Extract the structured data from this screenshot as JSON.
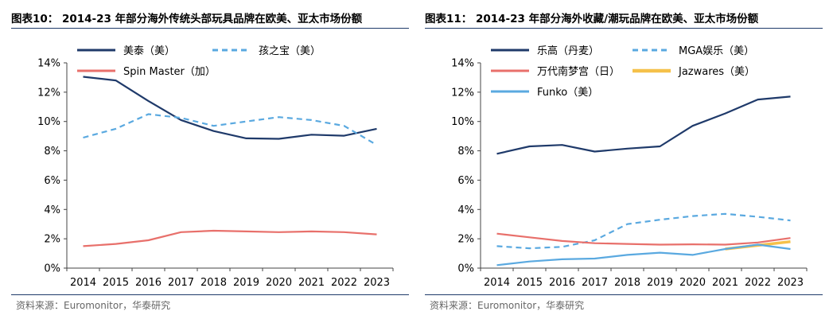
{
  "charts": [
    {
      "title": "图表10：  2014-23 年部分海外传统头部玩具品牌在欧美、亚太市场份额",
      "source": "资料来源：Euromonitor，华泰研究",
      "chart_data": {
        "type": "line",
        "x": [
          "2014",
          "2015",
          "2016",
          "2017",
          "2018",
          "2019",
          "2020",
          "2021",
          "2022",
          "2023"
        ],
        "ylim": [
          0,
          14
        ],
        "yticks": [
          "0%",
          "2%",
          "4%",
          "6%",
          "8%",
          "10%",
          "12%",
          "14%"
        ],
        "xlabel": "",
        "ylabel": "",
        "grid": false,
        "legend_placement": "top",
        "series": [
          {
            "name": "美泰（美）",
            "color": "#1f3a6a",
            "dash": "solid",
            "values": [
              13.05,
              12.8,
              11.4,
              10.1,
              9.35,
              8.85,
              8.82,
              9.1,
              9.03,
              9.5
            ]
          },
          {
            "name": "孩之宝（美）",
            "color": "#5aa9e0",
            "dash": "dashed",
            "values": [
              8.9,
              9.5,
              10.5,
              10.25,
              9.7,
              10.0,
              10.3,
              10.1,
              9.7,
              8.4
            ]
          },
          {
            "name": "Spin Master（加）",
            "color": "#e8706b",
            "dash": "solid",
            "values": [
              1.5,
              1.65,
              1.9,
              2.45,
              2.55,
              2.5,
              2.45,
              2.5,
              2.45,
              2.3
            ]
          }
        ]
      }
    },
    {
      "title": "图表11：  2014-23 年部分海外收藏/潮玩品牌在欧美、亚太市场份额",
      "source": "资料来源：Euromonitor，华泰研究",
      "chart_data": {
        "type": "line",
        "x": [
          "2014",
          "2015",
          "2016",
          "2017",
          "2018",
          "2019",
          "2020",
          "2021",
          "2022",
          "2023"
        ],
        "ylim": [
          0,
          14
        ],
        "yticks": [
          "0%",
          "2%",
          "4%",
          "6%",
          "8%",
          "10%",
          "12%",
          "14%"
        ],
        "xlabel": "",
        "ylabel": "",
        "grid": false,
        "legend_placement": "top",
        "series": [
          {
            "name": "乐高（丹麦）",
            "color": "#1f3a6a",
            "dash": "solid",
            "values": [
              7.8,
              8.3,
              8.4,
              7.95,
              8.15,
              8.3,
              9.7,
              10.55,
              11.5,
              11.7
            ]
          },
          {
            "name": "MGA娱乐（美）",
            "color": "#5aa9e0",
            "dash": "dashed",
            "values": [
              1.5,
              1.35,
              1.45,
              1.9,
              3.0,
              3.3,
              3.55,
              3.7,
              3.5,
              3.25
            ]
          },
          {
            "name": "万代南梦宫（日）",
            "color": "#e8706b",
            "dash": "solid",
            "values": [
              2.35,
              2.1,
              1.85,
              1.7,
              1.65,
              1.6,
              1.62,
              1.6,
              1.75,
              2.05
            ]
          },
          {
            "name": "Jazwares（美）",
            "color": "#f5c14a",
            "dash": "solid",
            "values": [
              null,
              null,
              null,
              null,
              null,
              null,
              null,
              1.3,
              1.55,
              1.8
            ]
          },
          {
            "name": "Funko（美）",
            "color": "#5aa9e0",
            "dash": "solid",
            "values": [
              0.2,
              0.45,
              0.6,
              0.65,
              0.9,
              1.05,
              0.9,
              1.3,
              1.6,
              1.3
            ]
          }
        ]
      }
    }
  ]
}
